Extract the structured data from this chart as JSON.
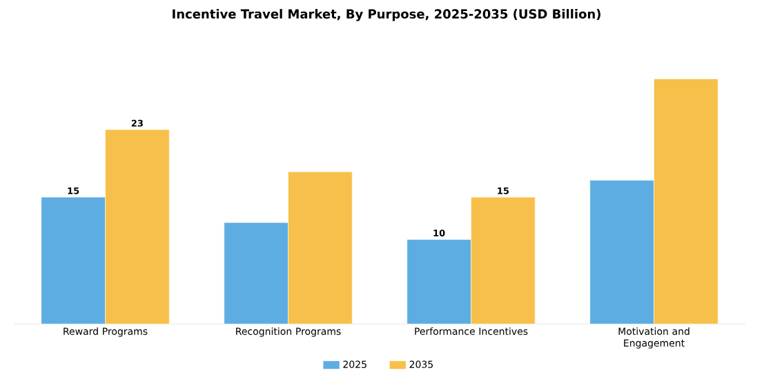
{
  "chart_data": {
    "type": "bar",
    "title": "Incentive Travel Market, By Purpose, 2025-2035 (USD Billion)",
    "categories": [
      "Reward Programs",
      "Recognition Programs",
      "Performance Incentives",
      "Motivation and Engagement"
    ],
    "series": [
      {
        "name": "2025",
        "color": "#5dade2",
        "values": [
          15,
          12,
          10,
          17
        ],
        "value_labels": [
          "15",
          null,
          "10",
          null
        ]
      },
      {
        "name": "2035",
        "color": "#f7c04a",
        "values": [
          23,
          18,
          15,
          29
        ],
        "value_labels": [
          "23",
          null,
          "15",
          null
        ]
      }
    ],
    "legend": "bottom"
  }
}
